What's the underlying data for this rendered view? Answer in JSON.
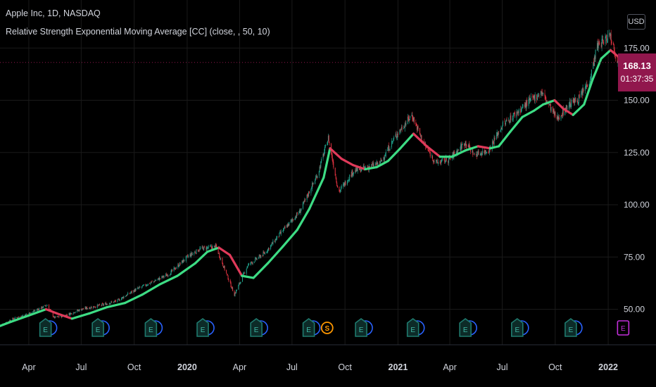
{
  "header": {
    "symbol_line": "Apple Inc, 1D, NASDAQ",
    "indicator_line": "Relative Strength Exponential Moving Average [CC] (close, , 50, 10)"
  },
  "currency_button": "USD",
  "last_price": {
    "value": "168.13",
    "countdown": "01:37:35"
  },
  "colors": {
    "background": "#000000",
    "grid": "#1a1a1a",
    "axis_text": "#d1d4dc",
    "ma_up": "#3ddc84",
    "ma_down": "#e03a5a",
    "candle_up": "#22ab94",
    "candle_down": "#f23645",
    "price_tag": "#91174d",
    "earnings_icon": "#1f7a6e",
    "earnings_ring": "#2962ff",
    "split_icon": "#ff9800",
    "future_event": "#c32fdb"
  },
  "chart_data": {
    "type": "line",
    "title": "Apple Inc, 1D, NASDAQ",
    "indicator": "Relative Strength Exponential Moving Average [CC] (close, , 50, 10)",
    "ylim": [
      33,
      198
    ],
    "xlim": [
      "2019-02-10",
      "2022-01-18"
    ],
    "y_ticks": [
      "50.00",
      "75.00",
      "100.00",
      "125.00",
      "150.00",
      "175.00",
      "200.00"
    ],
    "x_ticks": [
      {
        "date": "2019-04-01",
        "label": "Apr"
      },
      {
        "date": "2019-07-01",
        "label": "Jul"
      },
      {
        "date": "2019-10-01",
        "label": "Oct"
      },
      {
        "date": "2020-01-01",
        "label": "2020"
      },
      {
        "date": "2020-04-01",
        "label": "Apr"
      },
      {
        "date": "2020-07-01",
        "label": "Jul"
      },
      {
        "date": "2020-10-01",
        "label": "Oct"
      },
      {
        "date": "2021-01-01",
        "label": "2021"
      },
      {
        "date": "2021-04-01",
        "label": "Apr"
      },
      {
        "date": "2021-07-01",
        "label": "Jul"
      },
      {
        "date": "2021-10-01",
        "label": "Oct"
      },
      {
        "date": "2022-01-01",
        "label": "2022"
      }
    ],
    "grid": true,
    "last_price": 168.13,
    "price_series": {
      "x": [
        "2019-02-10",
        "2019-03-01",
        "2019-04-01",
        "2019-05-03",
        "2019-05-15",
        "2019-06-03",
        "2019-07-01",
        "2019-08-05",
        "2019-09-01",
        "2019-10-01",
        "2019-11-01",
        "2019-12-01",
        "2020-01-01",
        "2020-01-24",
        "2020-02-20",
        "2020-03-23",
        "2020-04-15",
        "2020-05-15",
        "2020-06-10",
        "2020-07-15",
        "2020-08-15",
        "2020-09-02",
        "2020-09-20",
        "2020-10-15",
        "2020-11-10",
        "2020-12-01",
        "2020-12-28",
        "2021-01-25",
        "2021-02-15",
        "2021-03-08",
        "2021-04-01",
        "2021-04-28",
        "2021-05-13",
        "2021-06-07",
        "2021-07-01",
        "2021-07-30",
        "2021-08-15",
        "2021-09-07",
        "2021-10-04",
        "2021-10-25",
        "2021-11-12",
        "2021-11-30",
        "2021-12-13",
        "2021-12-27",
        "2022-01-04",
        "2022-01-18"
      ],
      "values": [
        42,
        45,
        48,
        52,
        46,
        47,
        50,
        52,
        54,
        59,
        63,
        67,
        75,
        79,
        80,
        57,
        71,
        77,
        86,
        97,
        115,
        132,
        106,
        116,
        118,
        120,
        133,
        143,
        129,
        120,
        122,
        130,
        124,
        126,
        138,
        145,
        149,
        154,
        141,
        148,
        151,
        160,
        176,
        179,
        182,
        168
      ]
    },
    "series": [
      {
        "type": "rsema",
        "x": [
          "2019-02-10",
          "2019-03-01",
          "2019-04-01",
          "2019-05-01",
          "2019-05-20",
          "2019-06-15",
          "2019-07-15",
          "2019-08-15",
          "2019-09-15",
          "2019-10-15",
          "2019-11-15",
          "2019-12-15",
          "2020-01-15",
          "2020-02-05",
          "2020-02-25",
          "2020-03-15",
          "2020-04-05",
          "2020-04-25",
          "2020-05-20",
          "2020-06-15",
          "2020-07-10",
          "2020-07-31",
          "2020-08-25",
          "2020-09-05",
          "2020-09-25",
          "2020-10-15",
          "2020-11-05",
          "2020-11-25",
          "2020-12-15",
          "2021-01-05",
          "2021-01-28",
          "2021-02-20",
          "2021-03-15",
          "2021-04-05",
          "2021-04-28",
          "2021-05-20",
          "2021-06-10",
          "2021-06-25",
          "2021-07-15",
          "2021-08-05",
          "2021-08-25",
          "2021-09-10",
          "2021-09-30",
          "2021-10-15",
          "2021-11-01",
          "2021-11-20",
          "2021-12-05",
          "2021-12-20",
          "2022-01-05",
          "2022-01-18"
        ],
        "values": [
          42,
          44,
          47,
          50,
          48,
          45.5,
          48,
          51,
          53,
          57,
          62,
          66,
          72,
          77.5,
          79.5,
          76,
          66,
          65,
          72,
          80,
          88,
          98,
          113,
          127,
          122,
          119,
          117,
          118,
          121,
          127,
          134,
          128,
          123,
          123,
          126,
          128,
          127,
          128,
          135,
          142,
          145,
          148,
          150,
          146,
          143,
          148,
          160,
          170,
          174,
          171
        ],
        "trend": [
          "up",
          "up",
          "up",
          "up",
          "down",
          "down",
          "up",
          "up",
          "up",
          "up",
          "up",
          "up",
          "up",
          "up",
          "up",
          "down",
          "down",
          "up",
          "up",
          "up",
          "up",
          "up",
          "up",
          "up",
          "down",
          "down",
          "down",
          "up",
          "up",
          "up",
          "up",
          "down",
          "down",
          "up",
          "up",
          "up",
          "down",
          "up",
          "up",
          "up",
          "up",
          "up",
          "up",
          "down",
          "down",
          "up",
          "up",
          "up",
          "up",
          "down"
        ]
      }
    ],
    "events": [
      {
        "date": "2019-04-30",
        "type": "E"
      },
      {
        "date": "2019-07-30",
        "type": "E"
      },
      {
        "date": "2019-10-30",
        "type": "E"
      },
      {
        "date": "2020-01-28",
        "type": "E"
      },
      {
        "date": "2020-04-30",
        "type": "E"
      },
      {
        "date": "2020-07-30",
        "type": "E"
      },
      {
        "date": "2020-08-31",
        "type": "S"
      },
      {
        "date": "2020-10-29",
        "type": "E"
      },
      {
        "date": "2021-01-27",
        "type": "E"
      },
      {
        "date": "2021-04-28",
        "type": "E"
      },
      {
        "date": "2021-07-27",
        "type": "E"
      },
      {
        "date": "2021-10-28",
        "type": "E"
      },
      {
        "date": "2022-01-27",
        "type": "E",
        "future": true
      }
    ]
  }
}
